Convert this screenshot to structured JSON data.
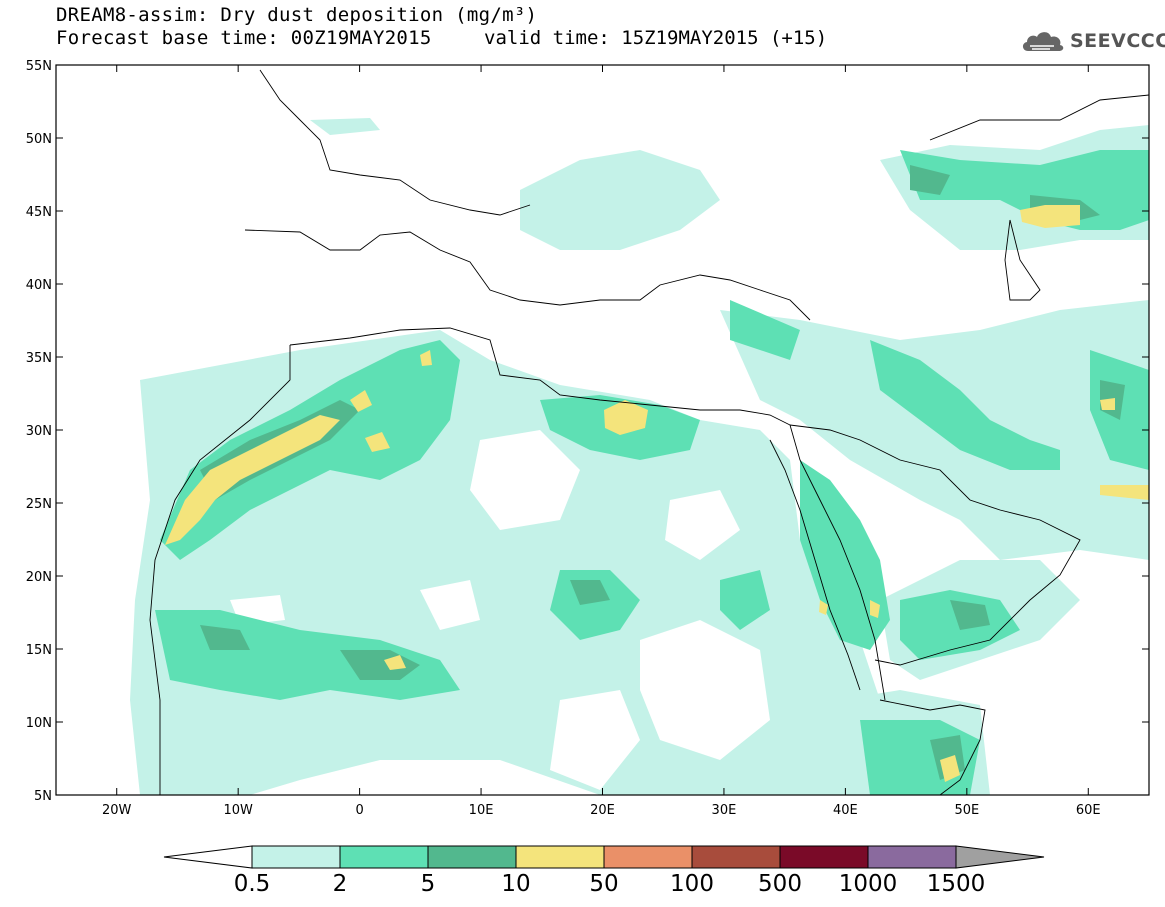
{
  "title": {
    "line1": "DREAM8-assim: Dry dust deposition (mg/m³)",
    "line2": "Forecast base time: 00Z19MAY2015",
    "line2_valid": "valid time: 15Z19MAY2015 (+15)"
  },
  "logo": {
    "text": "SEEVCCC",
    "icon": "cloud-icon"
  },
  "map": {
    "projection": "lat-lon",
    "lon_range": [
      -25,
      65
    ],
    "lat_range": [
      5,
      55
    ],
    "x_ticks": [
      {
        "lon": -20,
        "label": "20W"
      },
      {
        "lon": -10,
        "label": "10W"
      },
      {
        "lon": 0,
        "label": "0"
      },
      {
        "lon": 10,
        "label": "10E"
      },
      {
        "lon": 20,
        "label": "20E"
      },
      {
        "lon": 30,
        "label": "30E"
      },
      {
        "lon": 40,
        "label": "40E"
      },
      {
        "lon": 50,
        "label": "50E"
      },
      {
        "lon": 60,
        "label": "60E"
      }
    ],
    "y_ticks": [
      {
        "lat": 55,
        "label": "55N"
      },
      {
        "lat": 50,
        "label": "50N"
      },
      {
        "lat": 45,
        "label": "45N"
      },
      {
        "lat": 40,
        "label": "40N"
      },
      {
        "lat": 35,
        "label": "35N"
      },
      {
        "lat": 30,
        "label": "30N"
      },
      {
        "lat": 25,
        "label": "25N"
      },
      {
        "lat": 20,
        "label": "20N"
      },
      {
        "lat": 15,
        "label": "15N"
      },
      {
        "lat": 10,
        "label": "10N"
      },
      {
        "lat": 5,
        "label": "5N"
      }
    ]
  },
  "colorbar": {
    "labels": [
      "0.5",
      "2",
      "5",
      "10",
      "50",
      "100",
      "500",
      "1000",
      "1500"
    ],
    "colors": [
      "#c4f2e8",
      "#5ee0b4",
      "#52b88e",
      "#f4e47c",
      "#ea9068",
      "#a84c3c",
      "#7a0a28",
      "#8a6a9e"
    ],
    "underflow_color": "#ffffff",
    "overflow_color": "#a0a0a0",
    "colors_meaning": "contour fill levels"
  }
}
